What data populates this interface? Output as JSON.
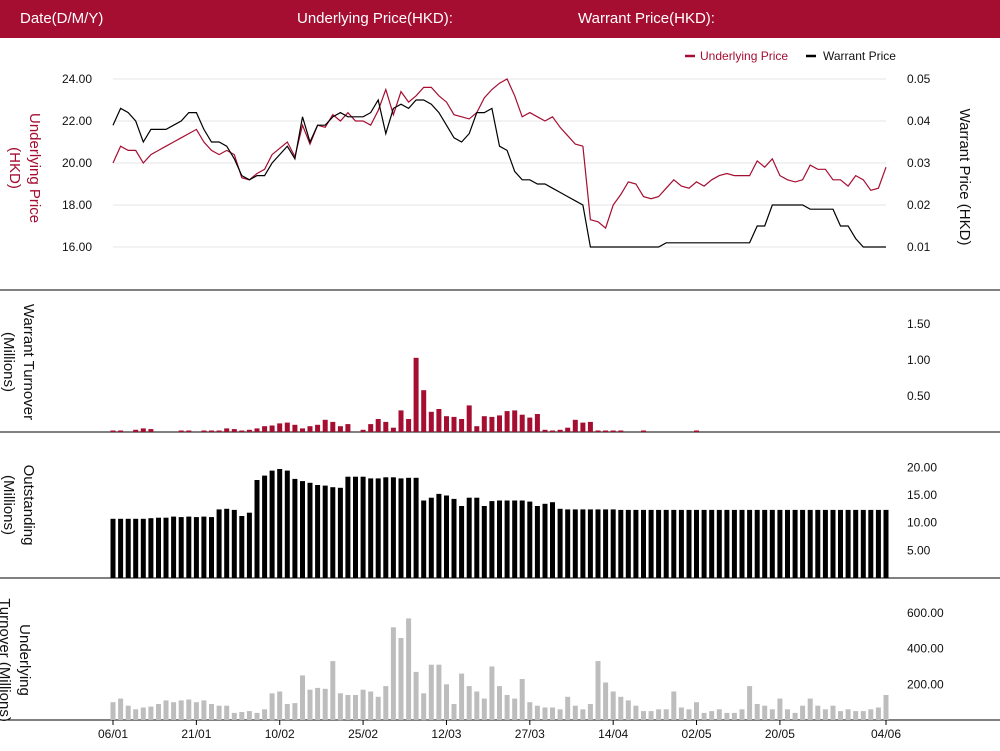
{
  "header": {
    "date_label": "Date(D/M/Y)",
    "underlying_label": "Underlying Price(HKD):",
    "warrant_label": "Warrant Price(HKD):"
  },
  "colors": {
    "header_bg": "#a50d31",
    "underlying": "#a50d31",
    "warrant": "#000000",
    "underlying_turnover": "#bdbdbd"
  },
  "chart_data": [
    {
      "type": "line",
      "panel": "price",
      "legend": [
        "Underlying Price",
        "Warrant Price"
      ],
      "legend_position": "top-right",
      "ylabel_left": "Underlying Price (HKD)",
      "ylabel_right": "Warrant  Price (HKD)",
      "yticks_left": [
        "16.00",
        "18.00",
        "20.00",
        "22.00",
        "24.00"
      ],
      "yticks_right": [
        "0.01",
        "0.02",
        "0.03",
        "0.04",
        "0.05"
      ],
      "ylim_left": [
        16,
        24
      ],
      "ylim_right": [
        0.01,
        0.05
      ],
      "series": [
        {
          "name": "Underlying Price",
          "values": [
            20.0,
            20.8,
            20.6,
            20.6,
            20.0,
            20.4,
            20.6,
            20.8,
            21.0,
            21.2,
            21.4,
            21.6,
            21.0,
            20.6,
            20.4,
            20.6,
            20.4,
            19.3,
            19.2,
            19.5,
            19.7,
            20.4,
            20.7,
            21.0,
            20.3,
            21.8,
            20.9,
            21.8,
            21.7,
            22.3,
            22.0,
            22.4,
            22.0,
            22.0,
            21.8,
            22.5,
            23.5,
            22.3,
            23.4,
            22.9,
            23.2,
            23.6,
            23.6,
            23.2,
            22.9,
            22.3,
            22.2,
            22.1,
            22.4,
            23.1,
            23.5,
            23.8,
            24.0,
            23.2,
            22.2,
            22.4,
            22.2,
            22.0,
            22.2,
            21.7,
            21.3,
            20.9,
            20.8,
            17.3,
            17.2,
            16.9,
            18.0,
            18.5,
            19.1,
            19.0,
            18.4,
            18.3,
            18.4,
            18.8,
            19.2,
            18.9,
            18.8,
            19.1,
            18.9,
            19.2,
            19.4,
            19.5,
            19.4,
            19.4,
            19.4,
            20.1,
            19.8,
            20.2,
            19.4,
            19.2,
            19.1,
            19.2,
            19.9,
            19.7,
            19.7,
            19.2,
            19.2,
            18.9,
            19.4,
            19.2,
            18.7,
            18.8,
            19.8
          ]
        },
        {
          "name": "Warrant Price",
          "values": [
            0.039,
            0.043,
            0.042,
            0.04,
            0.035,
            0.038,
            0.038,
            0.038,
            0.039,
            0.04,
            0.042,
            0.042,
            0.038,
            0.035,
            0.035,
            0.034,
            0.031,
            0.027,
            0.026,
            0.027,
            0.027,
            0.03,
            0.032,
            0.034,
            0.031,
            0.041,
            0.035,
            0.039,
            0.039,
            0.041,
            0.042,
            0.041,
            0.041,
            0.041,
            0.042,
            0.045,
            0.037,
            0.043,
            0.044,
            0.043,
            0.045,
            0.045,
            0.044,
            0.042,
            0.039,
            0.036,
            0.035,
            0.037,
            0.042,
            0.042,
            0.043,
            0.034,
            0.033,
            0.028,
            0.026,
            0.026,
            0.025,
            0.025,
            0.024,
            0.023,
            0.022,
            0.021,
            0.02,
            0.01,
            0.01,
            0.01,
            0.01,
            0.01,
            0.01,
            0.01,
            0.01,
            0.01,
            0.01,
            0.011,
            0.011,
            0.011,
            0.011,
            0.011,
            0.011,
            0.011,
            0.011,
            0.011,
            0.011,
            0.011,
            0.011,
            0.015,
            0.015,
            0.02,
            0.02,
            0.02,
            0.02,
            0.02,
            0.019,
            0.019,
            0.019,
            0.019,
            0.015,
            0.015,
            0.012,
            0.01,
            0.01,
            0.01,
            0.01
          ]
        }
      ]
    },
    {
      "type": "bar",
      "panel": "warrant_turnover",
      "ylabel": "Warrant  Turnover (Millions)",
      "yticks": [
        "0.50",
        "1.00",
        "1.50"
      ],
      "ylim": [
        0,
        1.5
      ],
      "values": [
        0.02,
        0.02,
        0.0,
        0.03,
        0.05,
        0.04,
        0.0,
        0.0,
        0.0,
        0.01,
        0.01,
        0.0,
        0.02,
        0.02,
        0.02,
        0.05,
        0.04,
        0.02,
        0.03,
        0.05,
        0.08,
        0.09,
        0.12,
        0.13,
        0.1,
        0.05,
        0.08,
        0.1,
        0.17,
        0.14,
        0.08,
        0.11,
        0.0,
        0.03,
        0.11,
        0.18,
        0.14,
        0.06,
        0.3,
        0.18,
        1.03,
        0.58,
        0.28,
        0.32,
        0.22,
        0.21,
        0.18,
        0.37,
        0.08,
        0.22,
        0.21,
        0.23,
        0.29,
        0.3,
        0.24,
        0.2,
        0.25,
        0.03,
        0.02,
        0.03,
        0.06,
        0.17,
        0.13,
        0.14,
        0.02,
        0.01,
        0.01,
        0.01,
        0.0,
        0.0,
        0.01,
        0.0,
        0.0,
        0.0,
        0.0,
        0.0,
        0.0,
        0.01,
        0.0,
        0.0,
        0.0,
        0.0,
        0.0,
        0.0,
        0.0,
        0.0,
        0.0,
        0.0,
        0.0,
        0.0,
        0.0,
        0.0,
        0.0,
        0.0,
        0.0,
        0.0,
        0.0,
        0.0,
        0.0,
        0.0,
        0.0,
        0.0,
        0.0
      ]
    },
    {
      "type": "bar",
      "panel": "outstanding",
      "ylabel": "Outstanding (Millions)",
      "yticks": [
        "5.00",
        "10.00",
        "15.00",
        "20.00"
      ],
      "ylim": [
        0,
        21.5
      ],
      "values": [
        10.7,
        10.7,
        10.7,
        10.7,
        10.7,
        10.8,
        10.9,
        10.9,
        11.1,
        11.0,
        11.1,
        11.0,
        11.1,
        11.0,
        12.4,
        12.5,
        12.3,
        11.2,
        11.8,
        17.7,
        18.5,
        19.4,
        19.7,
        19.4,
        17.9,
        17.5,
        17.2,
        16.8,
        16.7,
        16.4,
        16.3,
        18.3,
        18.3,
        18.3,
        18.0,
        18.0,
        18.2,
        18.2,
        18.0,
        18.1,
        18.1,
        14.0,
        14.5,
        15.2,
        14.9,
        14.3,
        13.0,
        14.5,
        14.5,
        13.0,
        13.9,
        14.0,
        14.0,
        14.0,
        14.0,
        13.8,
        13.0,
        13.4,
        13.7,
        12.5,
        12.4,
        12.4,
        12.4,
        12.4,
        12.4,
        12.4,
        12.4,
        12.3,
        12.3,
        12.3,
        12.3,
        12.3,
        12.3,
        12.3,
        12.3,
        12.3,
        12.3,
        12.3,
        12.3,
        12.3,
        12.3,
        12.3,
        12.3,
        12.3,
        12.3,
        12.3,
        12.3,
        12.3,
        12.3,
        12.3,
        12.3,
        12.3,
        12.3,
        12.3,
        12.3,
        12.3,
        12.3,
        12.3,
        12.3,
        12.3,
        12.3,
        12.3,
        12.3
      ]
    },
    {
      "type": "bar",
      "panel": "underlying_turnover",
      "ylabel": "Underlying Turnover (Millions)",
      "yticks": [
        "200.00",
        "400.00",
        "600.00"
      ],
      "ylim": [
        0,
        600
      ],
      "values": [
        100,
        120,
        80,
        60,
        70,
        75,
        90,
        110,
        100,
        110,
        115,
        100,
        110,
        90,
        80,
        80,
        40,
        45,
        50,
        40,
        60,
        150,
        160,
        90,
        95,
        250,
        170,
        180,
        175,
        330,
        150,
        140,
        140,
        170,
        160,
        130,
        190,
        520,
        460,
        570,
        270,
        150,
        310,
        310,
        200,
        90,
        260,
        190,
        160,
        120,
        300,
        190,
        140,
        120,
        230,
        100,
        80,
        70,
        70,
        60,
        130,
        80,
        60,
        90,
        330,
        210,
        160,
        130,
        110,
        80,
        50,
        50,
        60,
        60,
        160,
        70,
        60,
        100,
        40,
        50,
        60,
        40,
        40,
        60,
        190,
        90,
        80,
        60,
        120,
        60,
        40,
        80,
        120,
        80,
        60,
        80,
        50,
        60,
        50,
        50,
        60,
        70,
        140
      ]
    }
  ],
  "x_axis": {
    "tick_labels": [
      "06/01",
      "21/01",
      "10/02",
      "25/02",
      "12/03",
      "27/03",
      "14/04",
      "02/05",
      "20/05",
      "04/06"
    ],
    "tick_index": [
      0,
      11,
      22,
      33,
      44,
      55,
      66,
      77,
      88,
      102
    ]
  }
}
